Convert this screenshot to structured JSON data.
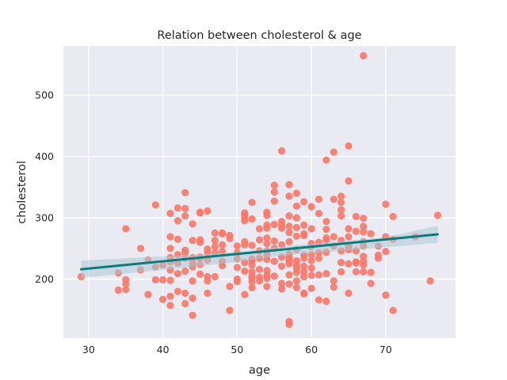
{
  "chart_data": {
    "type": "scatter",
    "title": "Relation between cholesterol & age",
    "xlabel": "age",
    "ylabel": "cholesterol",
    "xlim": [
      26.6,
      79.4
    ],
    "ylim": [
      104,
      580
    ],
    "xticks": [
      30,
      40,
      50,
      60,
      70
    ],
    "yticks": [
      200,
      300,
      400,
      500
    ],
    "grid": true,
    "colors": {
      "background": "#eaeaf2",
      "grid": "#ffffff",
      "points": "#f7786b",
      "regression_line": "#0e7a7a",
      "confidence_band": "#a9c9d6"
    },
    "regression": {
      "x": [
        29,
        77
      ],
      "y": [
        216,
        273
      ]
    },
    "confidence_band": {
      "x": [
        29,
        40,
        50,
        55,
        60,
        70,
        77
      ],
      "upper": [
        230,
        237,
        244,
        252,
        258,
        268,
        287
      ],
      "lower": [
        202,
        215,
        228,
        237,
        242,
        252,
        259
      ]
    },
    "points": [
      [
        29,
        204
      ],
      [
        34,
        210
      ],
      [
        34,
        182
      ],
      [
        35,
        282
      ],
      [
        35,
        199
      ],
      [
        35,
        192
      ],
      [
        35,
        183
      ],
      [
        37,
        215
      ],
      [
        37,
        250
      ],
      [
        38,
        175
      ],
      [
        38,
        231
      ],
      [
        39,
        321
      ],
      [
        39,
        220
      ],
      [
        39,
        199
      ],
      [
        40,
        199
      ],
      [
        40,
        167
      ],
      [
        40,
        223
      ],
      [
        41,
        307
      ],
      [
        41,
        269
      ],
      [
        41,
        250
      ],
      [
        41,
        235
      ],
      [
        41,
        228
      ],
      [
        41,
        215
      ],
      [
        41,
        198
      ],
      [
        41,
        172
      ],
      [
        41,
        157
      ],
      [
        42,
        316
      ],
      [
        42,
        295
      ],
      [
        42,
        265
      ],
      [
        42,
        240
      ],
      [
        42,
        226
      ],
      [
        42,
        209
      ],
      [
        42,
        180
      ],
      [
        43,
        341
      ],
      [
        43,
        315
      ],
      [
        43,
        303
      ],
      [
        43,
        247
      ],
      [
        43,
        243
      ],
      [
        43,
        234
      ],
      [
        43,
        213
      ],
      [
        43,
        177
      ],
      [
        43,
        160
      ],
      [
        44,
        290
      ],
      [
        44,
        263
      ],
      [
        44,
        235
      ],
      [
        44,
        233
      ],
      [
        44,
        226
      ],
      [
        44,
        220
      ],
      [
        44,
        197
      ],
      [
        44,
        169
      ],
      [
        44,
        141
      ],
      [
        45,
        309
      ],
      [
        45,
        308
      ],
      [
        45,
        264
      ],
      [
        45,
        260
      ],
      [
        45,
        236
      ],
      [
        45,
        234
      ],
      [
        45,
        224
      ],
      [
        45,
        208
      ],
      [
        46,
        311
      ],
      [
        46,
        249
      ],
      [
        46,
        243
      ],
      [
        46,
        231
      ],
      [
        46,
        204
      ],
      [
        46,
        197
      ],
      [
        46,
        177
      ],
      [
        47,
        275
      ],
      [
        47,
        263
      ],
      [
        47,
        253
      ],
      [
        47,
        243
      ],
      [
        47,
        204
      ],
      [
        48,
        275
      ],
      [
        48,
        274
      ],
      [
        48,
        256
      ],
      [
        48,
        245
      ],
      [
        48,
        229
      ],
      [
        48,
        222
      ],
      [
        49,
        271
      ],
      [
        49,
        266
      ],
      [
        49,
        188
      ],
      [
        49,
        149
      ],
      [
        50,
        254
      ],
      [
        50,
        243
      ],
      [
        50,
        233
      ],
      [
        50,
        219
      ],
      [
        50,
        200
      ],
      [
        50,
        196
      ],
      [
        51,
        308
      ],
      [
        51,
        304
      ],
      [
        51,
        300
      ],
      [
        51,
        295
      ],
      [
        51,
        261
      ],
      [
        51,
        256
      ],
      [
        51,
        227
      ],
      [
        51,
        213
      ],
      [
        51,
        175
      ],
      [
        52,
        325
      ],
      [
        52,
        298
      ],
      [
        52,
        255
      ],
      [
        52,
        233
      ],
      [
        52,
        230
      ],
      [
        52,
        223
      ],
      [
        52,
        212
      ],
      [
        52,
        205
      ],
      [
        52,
        201
      ],
      [
        52,
        196
      ],
      [
        52,
        186
      ],
      [
        53,
        282
      ],
      [
        53,
        264
      ],
      [
        53,
        246
      ],
      [
        53,
        234
      ],
      [
        53,
        216
      ],
      [
        53,
        203
      ],
      [
        53,
        197
      ],
      [
        54,
        309
      ],
      [
        54,
        304
      ],
      [
        54,
        288
      ],
      [
        54,
        283
      ],
      [
        54,
        267
      ],
      [
        54,
        258
      ],
      [
        54,
        246
      ],
      [
        54,
        239
      ],
      [
        54,
        232
      ],
      [
        54,
        214
      ],
      [
        54,
        206
      ],
      [
        54,
        201
      ],
      [
        54,
        188
      ],
      [
        55,
        353
      ],
      [
        55,
        342
      ],
      [
        55,
        327
      ],
      [
        55,
        289
      ],
      [
        55,
        262
      ],
      [
        55,
        250
      ],
      [
        55,
        229
      ],
      [
        55,
        205
      ],
      [
        56,
        409
      ],
      [
        56,
        294
      ],
      [
        56,
        288
      ],
      [
        56,
        283
      ],
      [
        56,
        256
      ],
      [
        56,
        236
      ],
      [
        56,
        221
      ],
      [
        56,
        193
      ],
      [
        56,
        184
      ],
      [
        57,
        354
      ],
      [
        57,
        335
      ],
      [
        57,
        303
      ],
      [
        57,
        286
      ],
      [
        57,
        276
      ],
      [
        57,
        261
      ],
      [
        57,
        241
      ],
      [
        57,
        236
      ],
      [
        57,
        232
      ],
      [
        57,
        229
      ],
      [
        57,
        225
      ],
      [
        57,
        207
      ],
      [
        57,
        192
      ],
      [
        57,
        131
      ],
      [
        57,
        126
      ],
      [
        58,
        340
      ],
      [
        58,
        319
      ],
      [
        58,
        300
      ],
      [
        58,
        284
      ],
      [
        58,
        270
      ],
      [
        58,
        248
      ],
      [
        58,
        230
      ],
      [
        58,
        224
      ],
      [
        58,
        218
      ],
      [
        58,
        211
      ],
      [
        58,
        197
      ],
      [
        58,
        186
      ],
      [
        59,
        326
      ],
      [
        59,
        288
      ],
      [
        59,
        274
      ],
      [
        59,
        271
      ],
      [
        59,
        239
      ],
      [
        59,
        234
      ],
      [
        59,
        221
      ],
      [
        59,
        212
      ],
      [
        59,
        204
      ],
      [
        59,
        177
      ],
      [
        59,
        176
      ],
      [
        60,
        318
      ],
      [
        60,
        282
      ],
      [
        60,
        258
      ],
      [
        60,
        253
      ],
      [
        60,
        240
      ],
      [
        60,
        230
      ],
      [
        60,
        218
      ],
      [
        60,
        206
      ],
      [
        60,
        185
      ],
      [
        61,
        330
      ],
      [
        61,
        307
      ],
      [
        61,
        260
      ],
      [
        61,
        243
      ],
      [
        61,
        234
      ],
      [
        61,
        207
      ],
      [
        61,
        166
      ],
      [
        62,
        394
      ],
      [
        62,
        294
      ],
      [
        62,
        281
      ],
      [
        62,
        267
      ],
      [
        62,
        263
      ],
      [
        62,
        244
      ],
      [
        62,
        209
      ],
      [
        62,
        164
      ],
      [
        63,
        407
      ],
      [
        63,
        330
      ],
      [
        63,
        269
      ],
      [
        63,
        254
      ],
      [
        63,
        197
      ],
      [
        63,
        187
      ],
      [
        64,
        335
      ],
      [
        64,
        325
      ],
      [
        64,
        313
      ],
      [
        64,
        303
      ],
      [
        64,
        263
      ],
      [
        64,
        246
      ],
      [
        64,
        227
      ],
      [
        64,
        212
      ],
      [
        65,
        417
      ],
      [
        65,
        360
      ],
      [
        65,
        282
      ],
      [
        65,
        269
      ],
      [
        65,
        254
      ],
      [
        65,
        248
      ],
      [
        65,
        225
      ],
      [
        65,
        177
      ],
      [
        66,
        302
      ],
      [
        66,
        278
      ],
      [
        66,
        246
      ],
      [
        66,
        228
      ],
      [
        66,
        226
      ],
      [
        66,
        212
      ],
      [
        67,
        564
      ],
      [
        67,
        299
      ],
      [
        67,
        286
      ],
      [
        67,
        277
      ],
      [
        67,
        261
      ],
      [
        67,
        254
      ],
      [
        67,
        237
      ],
      [
        67,
        229
      ],
      [
        67,
        223
      ],
      [
        67,
        212
      ],
      [
        68,
        274
      ],
      [
        68,
        211
      ],
      [
        68,
        193
      ],
      [
        69,
        254
      ],
      [
        69,
        239
      ],
      [
        69,
        234
      ],
      [
        70,
        322
      ],
      [
        70,
        269
      ],
      [
        70,
        245
      ],
      [
        70,
        174
      ],
      [
        71,
        302
      ],
      [
        71,
        265
      ],
      [
        71,
        149
      ],
      [
        74,
        269
      ],
      [
        76,
        197
      ],
      [
        77,
        304
      ]
    ]
  }
}
